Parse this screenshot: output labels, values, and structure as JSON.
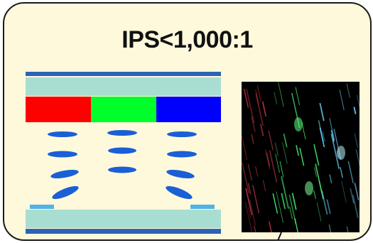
{
  "title": "IPS<1,000:1",
  "colors": {
    "panel_bg": "#fff9dc",
    "glass": "#a8ddd2",
    "polarizer": "#2b63b8",
    "red": "#ff0000",
    "green": "#00ff2a",
    "blue": "#0000ff",
    "molecule": "#1a5fd6",
    "electrode": "#4fb3e6"
  },
  "icons": {
    "microscope_photo": "lcd-microscope-image"
  }
}
